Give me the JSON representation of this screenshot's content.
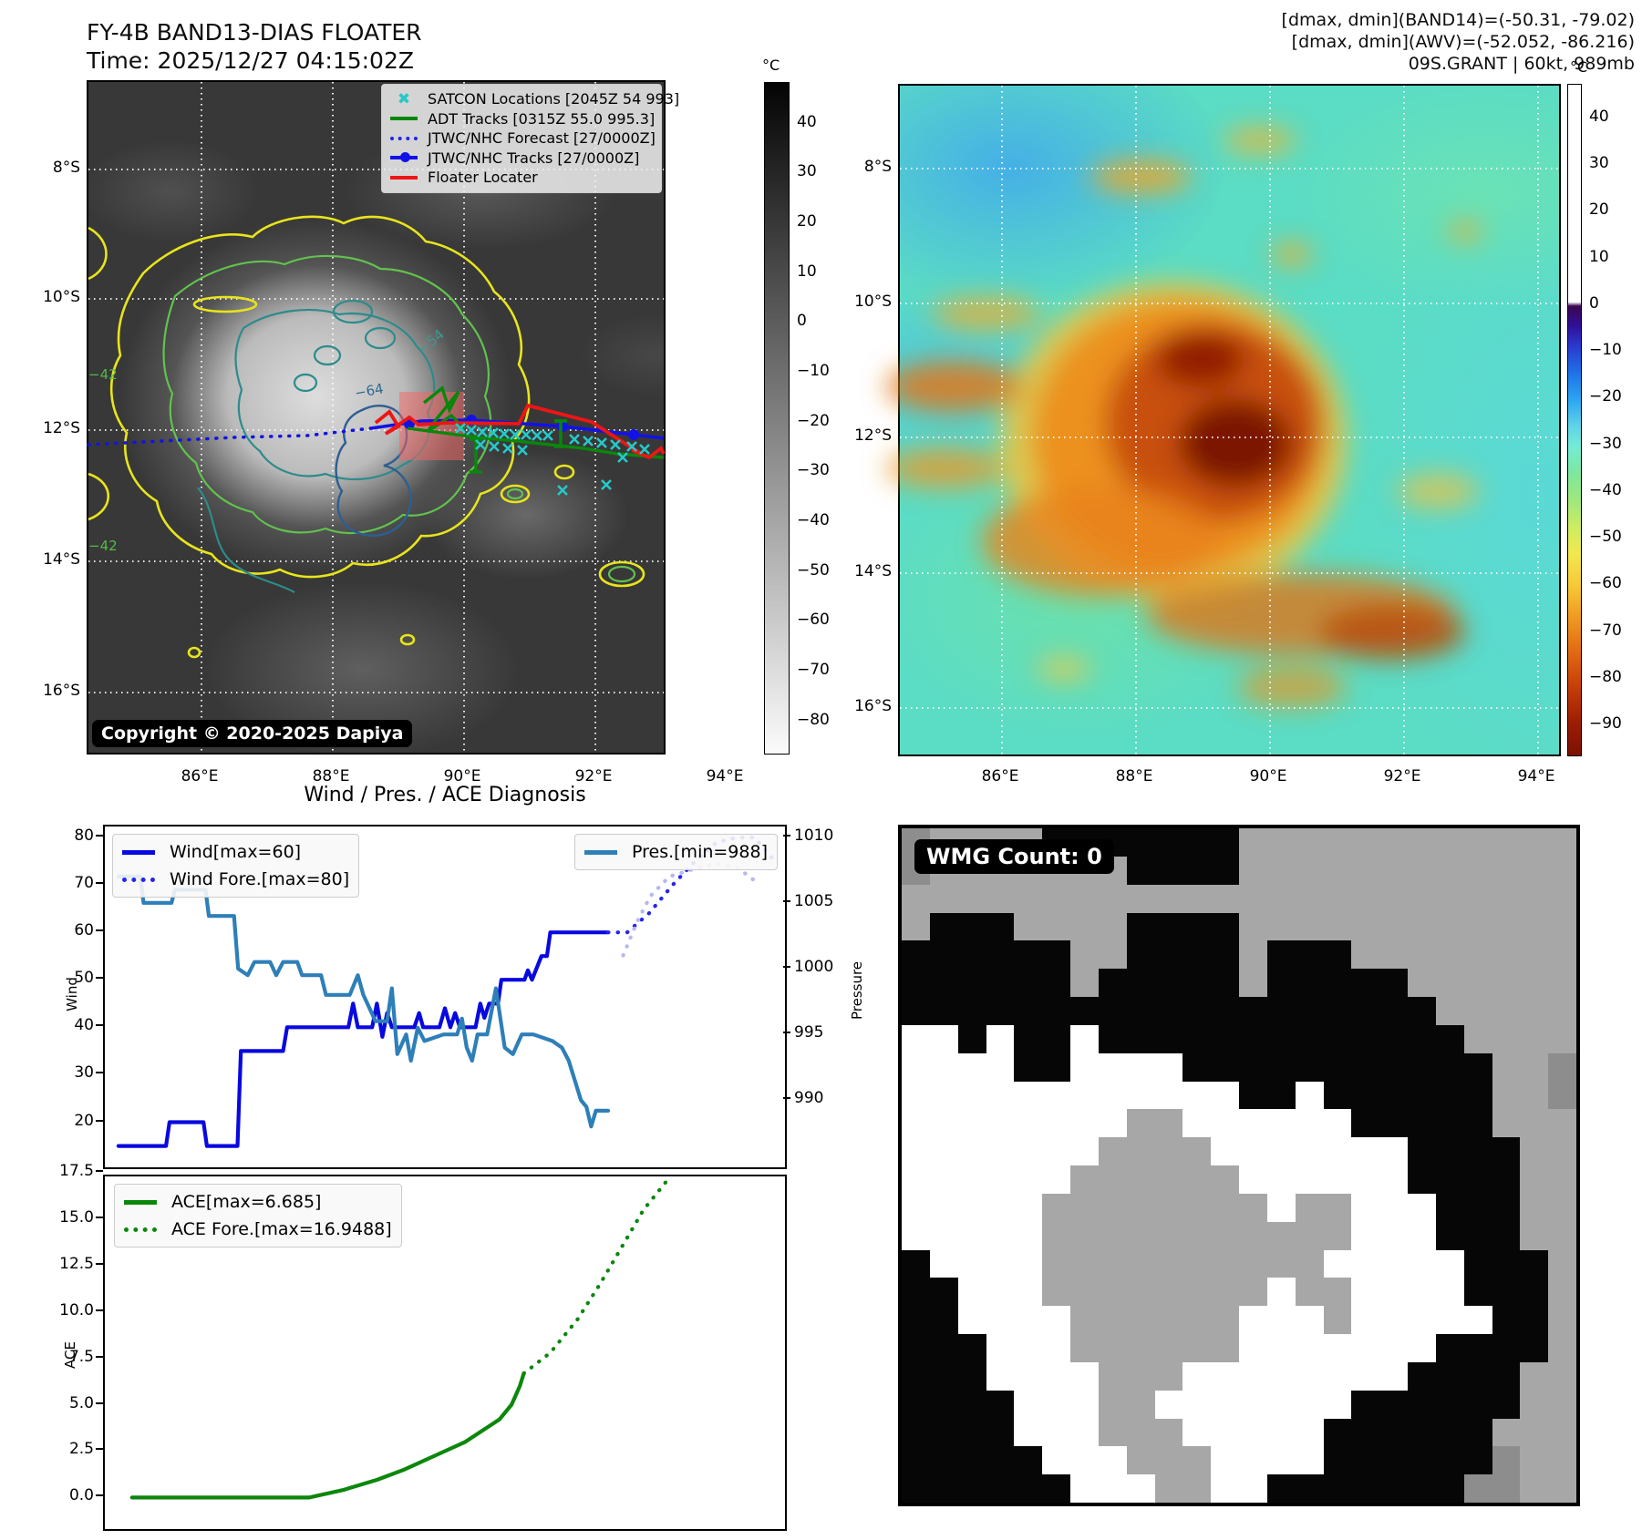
{
  "panel_tl": {
    "title_line1": "FY-4B BAND13-DIAS FLOATER",
    "title_line2": "Time: 2025/12/27 04:15:02Z",
    "legend": [
      {
        "label": "SATCON Locations [2045Z 54 993]",
        "type": "x",
        "color": "#28c8c8"
      },
      {
        "label": "ADT Tracks [0315Z 55.0 995.3]",
        "type": "line",
        "color": "#0a870a"
      },
      {
        "label": "JTWC/NHC Forecast [27/0000Z]",
        "type": "dotted",
        "color": "#2222ee"
      },
      {
        "label": "JTWC/NHC Tracks [27/0000Z]",
        "type": "linedot",
        "color": "#1212e8"
      },
      {
        "label": "Floater Locater",
        "type": "line",
        "color": "#ee1515"
      }
    ],
    "copyright": "Copyright © 2020-2025 Dapiya",
    "colorbar": {
      "unit": "°C",
      "ticks": [
        "40",
        "30",
        "20",
        "10",
        "0",
        "−10",
        "−20",
        "−30",
        "−40",
        "−50",
        "−60",
        "−70",
        "−80"
      ]
    },
    "x_ticks": [
      "86°E",
      "88°E",
      "90°E",
      "92°E",
      "94°E"
    ],
    "y_ticks": [
      "8°S",
      "10°S",
      "12°S",
      "14°S",
      "16°S"
    ],
    "contour_labels": [
      {
        "text": "−54",
        "color": "#3a9a92"
      },
      {
        "text": "−64",
        "color": "#2d6b8e"
      },
      {
        "text": "−42",
        "color": "#56b84a"
      },
      {
        "text": "−42",
        "color": "#56b84a"
      }
    ]
  },
  "panel_tr": {
    "header_line1": "[dmax, dmin](BAND14)=(-50.31, -79.02)",
    "header_line2": "[dmax, dmin](AWV)=(-52.052, -86.216)",
    "header_line3": "09S.GRANT | 60kt, 989mb",
    "colorbar": {
      "unit": "°C",
      "ticks": [
        "40",
        "30",
        "20",
        "10",
        "0",
        "−10",
        "−20",
        "−30",
        "−40",
        "−50",
        "−60",
        "−70",
        "−80",
        "−90"
      ]
    },
    "x_ticks": [
      "86°E",
      "88°E",
      "90°E",
      "92°E",
      "94°E"
    ],
    "y_ticks": [
      "8°S",
      "10°S",
      "12°S",
      "14°S",
      "16°S"
    ]
  },
  "chart_data": [
    {
      "type": "line",
      "title": "Wind / Pres. / ACE Diagnosis",
      "ylabel": "Wind",
      "y2label": "Pressure",
      "ylim": [
        10.5,
        82.3
      ],
      "y2lim": [
        984.9,
        1010.8
      ],
      "yticks": [
        "80",
        "70",
        "60",
        "50",
        "40",
        "30",
        "20"
      ],
      "y2ticks": [
        "1010",
        "1005",
        "1000",
        "995",
        "990"
      ],
      "legend_left": [
        "Wind[max=60]",
        "Wind Fore.[max=80]"
      ],
      "legend_right": [
        "Pres.[min=988]"
      ],
      "series": [
        {
          "name": "Wind[max=60]",
          "axis": "y",
          "style": "solid",
          "color": "#0808e0",
          "points": [
            [
              0.02,
              15
            ],
            [
              0.09,
              15
            ],
            [
              0.095,
              20
            ],
            [
              0.145,
              20
            ],
            [
              0.15,
              15
            ],
            [
              0.195,
              15
            ],
            [
              0.2,
              35
            ],
            [
              0.262,
              35
            ],
            [
              0.268,
              40
            ],
            [
              0.358,
              40
            ],
            [
              0.365,
              45
            ],
            [
              0.372,
              40
            ],
            [
              0.393,
              40
            ],
            [
              0.4,
              45
            ],
            [
              0.408,
              38
            ],
            [
              0.415,
              43
            ],
            [
              0.422,
              40
            ],
            [
              0.455,
              40
            ],
            [
              0.462,
              43
            ],
            [
              0.468,
              40
            ],
            [
              0.492,
              40
            ],
            [
              0.5,
              44
            ],
            [
              0.508,
              40
            ],
            [
              0.515,
              43
            ],
            [
              0.522,
              40
            ],
            [
              0.545,
              40
            ],
            [
              0.552,
              45
            ],
            [
              0.558,
              42
            ],
            [
              0.565,
              45
            ],
            [
              0.578,
              45
            ],
            [
              0.583,
              50
            ],
            [
              0.617,
              50
            ],
            [
              0.622,
              52
            ],
            [
              0.628,
              50
            ],
            [
              0.642,
              55
            ],
            [
              0.65,
              55
            ],
            [
              0.655,
              60
            ],
            [
              0.74,
              60
            ]
          ]
        },
        {
          "name": "Wind Fore.[max=80]",
          "axis": "y",
          "style": "dotted",
          "color": "#2525ee",
          "points": [
            [
              0.74,
              60
            ],
            [
              0.768,
              60
            ],
            [
              0.8,
              64
            ],
            [
              0.835,
              70
            ],
            [
              0.868,
              75
            ],
            [
              0.9,
              79
            ],
            [
              0.93,
              80
            ],
            [
              0.955,
              80
            ],
            [
              0.985,
              75
            ]
          ]
        },
        {
          "name": "Pres.[min=988]",
          "axis": "y2",
          "style": "solid",
          "color": "#2e7fb8",
          "points": [
            [
              0.02,
              1007
            ],
            [
              0.052,
              1007
            ],
            [
              0.057,
              1005
            ],
            [
              0.098,
              1005
            ],
            [
              0.103,
              1006
            ],
            [
              0.148,
              1006
            ],
            [
              0.153,
              1004
            ],
            [
              0.19,
              1004
            ],
            [
              0.196,
              1000
            ],
            [
              0.21,
              999.5
            ],
            [
              0.22,
              1000.5
            ],
            [
              0.243,
              1000.5
            ],
            [
              0.252,
              999.5
            ],
            [
              0.262,
              1000.5
            ],
            [
              0.283,
              1000.5
            ],
            [
              0.29,
              999.5
            ],
            [
              0.318,
              999.5
            ],
            [
              0.325,
              998
            ],
            [
              0.36,
              998
            ],
            [
              0.372,
              999.5
            ],
            [
              0.38,
              998
            ],
            [
              0.398,
              996
            ],
            [
              0.415,
              996
            ],
            [
              0.422,
              998.5
            ],
            [
              0.43,
              993.5
            ],
            [
              0.443,
              995
            ],
            [
              0.45,
              993
            ],
            [
              0.46,
              995.5
            ],
            [
              0.47,
              994.5
            ],
            [
              0.498,
              995
            ],
            [
              0.518,
              995
            ],
            [
              0.525,
              996.2
            ],
            [
              0.532,
              994
            ],
            [
              0.54,
              993
            ],
            [
              0.548,
              995
            ],
            [
              0.562,
              995
            ],
            [
              0.575,
              998.5
            ],
            [
              0.588,
              994
            ],
            [
              0.6,
              993.5
            ],
            [
              0.613,
              995
            ],
            [
              0.63,
              995
            ],
            [
              0.658,
              994.5
            ],
            [
              0.672,
              994
            ],
            [
              0.682,
              993
            ],
            [
              0.7,
              990
            ],
            [
              0.708,
              989.5
            ],
            [
              0.715,
              988
            ],
            [
              0.722,
              989.2
            ],
            [
              0.74,
              989.2
            ]
          ]
        },
        {
          "name": "Pres. Fore.",
          "axis": "y2",
          "style": "dotted",
          "color": "#b6b8ef",
          "points": [
            [
              0.762,
              1001
            ],
            [
              0.782,
              1003.5
            ],
            [
              0.802,
              1005.5
            ],
            [
              0.83,
              1007
            ],
            [
              0.868,
              1007.6
            ],
            [
              0.9,
              1008
            ],
            [
              0.932,
              1007.6
            ],
            [
              0.96,
              1006.5
            ]
          ]
        }
      ]
    },
    {
      "type": "line",
      "ylabel": "ACE",
      "ylim": [
        -1.7,
        17.3
      ],
      "yticks": [
        "17.5",
        "15.0",
        "12.5",
        "10.0",
        "7.5",
        "5.0",
        "2.5",
        "0.0"
      ],
      "legend_left": [
        "ACE[max=6.685]",
        "ACE Fore.[max=16.9488]"
      ],
      "series": [
        {
          "name": "ACE[max=6.685]",
          "axis": "y",
          "style": "solid",
          "color": "#0b870b",
          "points": [
            [
              0.04,
              0
            ],
            [
              0.3,
              0
            ],
            [
              0.35,
              0.4
            ],
            [
              0.4,
              0.95
            ],
            [
              0.44,
              1.5
            ],
            [
              0.47,
              2.0
            ],
            [
              0.5,
              2.5
            ],
            [
              0.53,
              3.0
            ],
            [
              0.555,
              3.6
            ],
            [
              0.58,
              4.2
            ],
            [
              0.598,
              5.0
            ],
            [
              0.61,
              6.0
            ],
            [
              0.616,
              6.685
            ]
          ]
        },
        {
          "name": "ACE Fore.[max=16.9488]",
          "axis": "y",
          "style": "dotted",
          "color": "#0b870b",
          "points": [
            [
              0.616,
              6.685
            ],
            [
              0.655,
              7.8
            ],
            [
              0.695,
              9.6
            ],
            [
              0.728,
              11.5
            ],
            [
              0.76,
              13.5
            ],
            [
              0.792,
              15.5
            ],
            [
              0.825,
              17.0
            ]
          ]
        }
      ]
    }
  ],
  "panel_br": {
    "badge": "WMG Count: 0",
    "palette": {
      "G": "#a7a7a7",
      "B": "#060606",
      "W": "#ffffff",
      "D": "#8d8d8d"
    },
    "grid_rows": [
      "DGGGGBBBBBBBGGGGGGGGGGGG",
      "DGGGGGGGBBBBGGGGGGGGGGGG",
      "GGGGGGGGGGGGGGGGGGGGGGGG",
      "GBBBGGGGBBBBGGGGGGGGGGGG",
      "BBBBBBGGBBBBGBBBGGGGGGGG",
      "BBBBBBGBBBBBGBBBBBGGGGGG",
      "BBBBBBBBBBBBBBBBBBBGGGGG",
      "WWBWBBWBBBBBBBBBBBBBGGGG",
      "WWWWBBWWWWBBBBBBBBBBBGGD",
      "WWWWWWWWWWWWBBWBBBBBBGGD",
      "WWWWWWWWGGWWWWWWBBBBBGGG",
      "WWWWWWWGGGGWWWWWWWBBBBGG",
      "WWWWWWGGGGGGWWWWWWBBBBGG",
      "WWWWWGGGGGGGGWGGWWWBBBGG",
      "WWWWWGGGGGGGGGGGWWWBBBGG",
      "BWWWWGGGGGGGGGGWWWWWBBBG",
      "BBWWWGGGGGGGGWGGWWWWBBBG",
      "BBWWWWGGGGGGWWWGWWWWWBBG",
      "BBBWWWGGGGGGWWWWWWWBBBBG",
      "BBBWWWWGGGWWWWWWWWBBBBGG",
      "BBBBWWWGGWWWWWWWBBBBBBGG",
      "BBBBWWWGGGWWWWWBBBBBBGGG",
      "BBBBBWWWGGGWWWWBBBBBBDGG",
      "BBBBBBWWWGGWWBBBBBBBDDGG"
    ]
  }
}
